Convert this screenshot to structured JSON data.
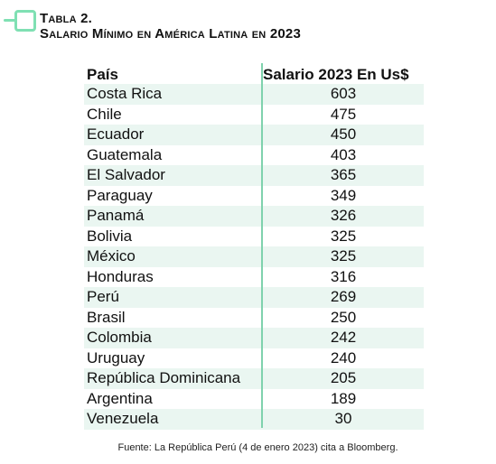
{
  "caption": {
    "title": "Tabla 2.",
    "subtitle": "Salario Mínimo en América Latina en 2023"
  },
  "table": {
    "headers": {
      "country": "País",
      "salary": "Salario 2023 En Us$"
    },
    "rows": [
      {
        "country": "Costa Rica",
        "salary": "603"
      },
      {
        "country": "Chile",
        "salary": "475"
      },
      {
        "country": "Ecuador",
        "salary": "450"
      },
      {
        "country": "Guatemala",
        "salary": "403"
      },
      {
        "country": "El Salvador",
        "salary": "365"
      },
      {
        "country": "Paraguay",
        "salary": "349"
      },
      {
        "country": "Panamá",
        "salary": "326"
      },
      {
        "country": "Bolivia",
        "salary": "325"
      },
      {
        "country": "México",
        "salary": "325"
      },
      {
        "country": "Honduras",
        "salary": "316"
      },
      {
        "country": "Perú",
        "salary": "269"
      },
      {
        "country": "Brasil",
        "salary": "250"
      },
      {
        "country": "Colombia",
        "salary": "242"
      },
      {
        "country": "Uruguay",
        "salary": "240"
      },
      {
        "country": "República Dominicana",
        "salary": "205"
      },
      {
        "country": "Argentina",
        "salary": "189"
      },
      {
        "country": "Venezuela",
        "salary": "30"
      }
    ]
  },
  "footer": "Fuente: La República Perú (4 de enero 2023) cita a Bloomberg.",
  "colors": {
    "accent": "#7fe0b3",
    "row_shade": "#eaf6f1",
    "divider": "#7fd2ad"
  }
}
